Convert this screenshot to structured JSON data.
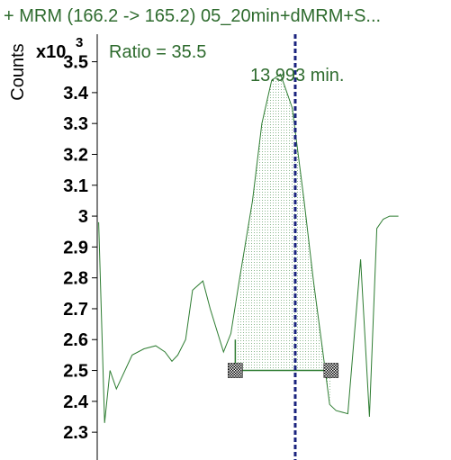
{
  "chart_data": {
    "type": "line",
    "title": "+ MRM (166.2 -> 165.2) 05_20min+dMRM+S...",
    "ylabel": "Counts",
    "y_multiplier": "x10",
    "y_multiplier_exponent": "3",
    "ylim": [
      2.21,
      3.7
    ],
    "yticks": [
      "2.3",
      "2.4",
      "2.5",
      "2.6",
      "2.7",
      "2.8",
      "2.9",
      "3",
      "3.1",
      "3.2",
      "3.3",
      "3.4",
      "3.5"
    ],
    "xlim": [
      13.59,
      14.31
    ],
    "series": [
      {
        "color": "#2e7d32",
        "x": [
          13.593,
          13.605,
          13.616,
          13.629,
          13.661,
          13.685,
          13.709,
          13.728,
          13.742,
          13.754,
          13.77,
          13.784,
          13.805,
          13.82,
          13.847,
          13.862,
          13.88,
          13.906,
          13.925,
          13.945,
          13.963,
          13.987,
          14.011,
          14.03,
          14.05,
          14.063,
          14.076,
          14.1,
          14.126,
          14.144,
          14.159,
          14.172,
          14.185,
          14.203
        ],
        "y": [
          2.98,
          2.33,
          2.5,
          2.44,
          2.55,
          2.57,
          2.58,
          2.56,
          2.53,
          2.55,
          2.6,
          2.76,
          2.79,
          2.7,
          2.56,
          2.62,
          2.8,
          3.05,
          3.3,
          3.44,
          3.46,
          3.35,
          3.05,
          2.79,
          2.55,
          2.39,
          2.37,
          2.36,
          2.86,
          2.35,
          2.96,
          2.99,
          3.0,
          3.0
        ]
      }
    ],
    "integration": {
      "start_x": 13.871,
      "start_y": 2.5,
      "end_x": 14.066,
      "end_y": 2.5,
      "color": "#2e7d32"
    },
    "retention_marker": {
      "x": 13.993,
      "label": "13.993 min.",
      "color": "#1a237e"
    },
    "annotation": "Ratio = 35.5"
  }
}
